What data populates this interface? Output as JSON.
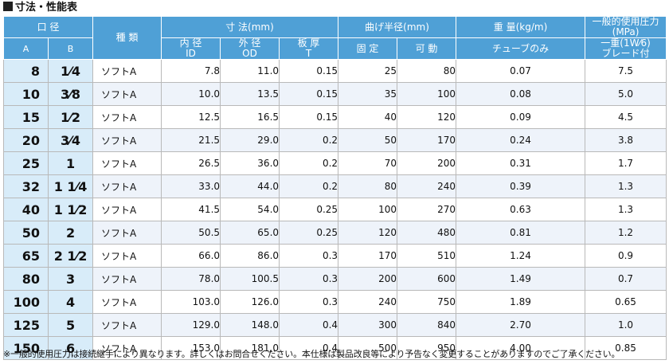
{
  "title": "寸法・性能表",
  "header": {
    "bore": "口 径",
    "bore_a": "A",
    "bore_b": "B",
    "kind": "種 類",
    "dims": "寸 法(mm)",
    "id_jp": "内 径",
    "id_en": "ID",
    "od_jp": "外 径",
    "od_en": "OD",
    "t_jp": "板 厚",
    "t_en": "T",
    "bend": "曲げ半径(mm)",
    "bend_fixed": "固 定",
    "bend_movable": "可 動",
    "weight": "重 量(kg/m)",
    "weight_sub": "チューブのみ",
    "pressure": "一般的使用圧力(MPa)",
    "pressure_sub1": "一重(1W⁄6)",
    "pressure_sub2": "ブレード付"
  },
  "rows": [
    {
      "a": "8",
      "b": "1⁄4",
      "kind": "ソフトA",
      "id": "7.8",
      "od": "11.0",
      "t": "0.15",
      "fixed": "25",
      "movable": "80",
      "weight": "0.07",
      "pressure": "7.5"
    },
    {
      "a": "10",
      "b": "3⁄8",
      "kind": "ソフトA",
      "id": "10.0",
      "od": "13.5",
      "t": "0.15",
      "fixed": "35",
      "movable": "100",
      "weight": "0.08",
      "pressure": "5.0"
    },
    {
      "a": "15",
      "b": "1⁄2",
      "kind": "ソフトA",
      "id": "12.5",
      "od": "16.5",
      "t": "0.15",
      "fixed": "40",
      "movable": "120",
      "weight": "0.09",
      "pressure": "4.5"
    },
    {
      "a": "20",
      "b": "3⁄4",
      "kind": "ソフトA",
      "id": "21.5",
      "od": "29.0",
      "t": "0.2",
      "fixed": "50",
      "movable": "170",
      "weight": "0.24",
      "pressure": "3.8"
    },
    {
      "a": "25",
      "b": "1",
      "kind": "ソフトA",
      "id": "26.5",
      "od": "36.0",
      "t": "0.2",
      "fixed": "70",
      "movable": "200",
      "weight": "0.31",
      "pressure": "1.7"
    },
    {
      "a": "32",
      "b": "1 1⁄4",
      "kind": "ソフトA",
      "id": "33.0",
      "od": "44.0",
      "t": "0.2",
      "fixed": "80",
      "movable": "240",
      "weight": "0.39",
      "pressure": "1.3"
    },
    {
      "a": "40",
      "b": "1 1⁄2",
      "kind": "ソフトA",
      "id": "41.5",
      "od": "54.0",
      "t": "0.25",
      "fixed": "100",
      "movable": "270",
      "weight": "0.63",
      "pressure": "1.3"
    },
    {
      "a": "50",
      "b": "2",
      "kind": "ソフトA",
      "id": "50.5",
      "od": "65.0",
      "t": "0.25",
      "fixed": "120",
      "movable": "480",
      "weight": "0.81",
      "pressure": "1.2"
    },
    {
      "a": "65",
      "b": "2 1⁄2",
      "kind": "ソフトA",
      "id": "66.0",
      "od": "86.0",
      "t": "0.3",
      "fixed": "170",
      "movable": "510",
      "weight": "1.24",
      "pressure": "0.9"
    },
    {
      "a": "80",
      "b": "3",
      "kind": "ソフトA",
      "id": "78.0",
      "od": "100.5",
      "t": "0.3",
      "fixed": "200",
      "movable": "600",
      "weight": "1.49",
      "pressure": "0.7"
    },
    {
      "a": "100",
      "b": "4",
      "kind": "ソフトA",
      "id": "103.0",
      "od": "126.0",
      "t": "0.3",
      "fixed": "240",
      "movable": "750",
      "weight": "1.89",
      "pressure": "0.65"
    },
    {
      "a": "125",
      "b": "5",
      "kind": "ソフトA",
      "id": "129.0",
      "od": "148.0",
      "t": "0.4",
      "fixed": "300",
      "movable": "840",
      "weight": "2.70",
      "pressure": "1.0"
    },
    {
      "a": "150",
      "b": "6",
      "kind": "ソフトA",
      "id": "153.0",
      "od": "181.0",
      "t": "0.4",
      "fixed": "500",
      "movable": "950",
      "weight": "4.00",
      "pressure": "0.85"
    }
  ],
  "note": "※一般的使用圧力は接続継手により異なります。詳しくはお問合せください。本仕様は製品改良等により予告なく変更することがありますのでご了承ください。"
}
